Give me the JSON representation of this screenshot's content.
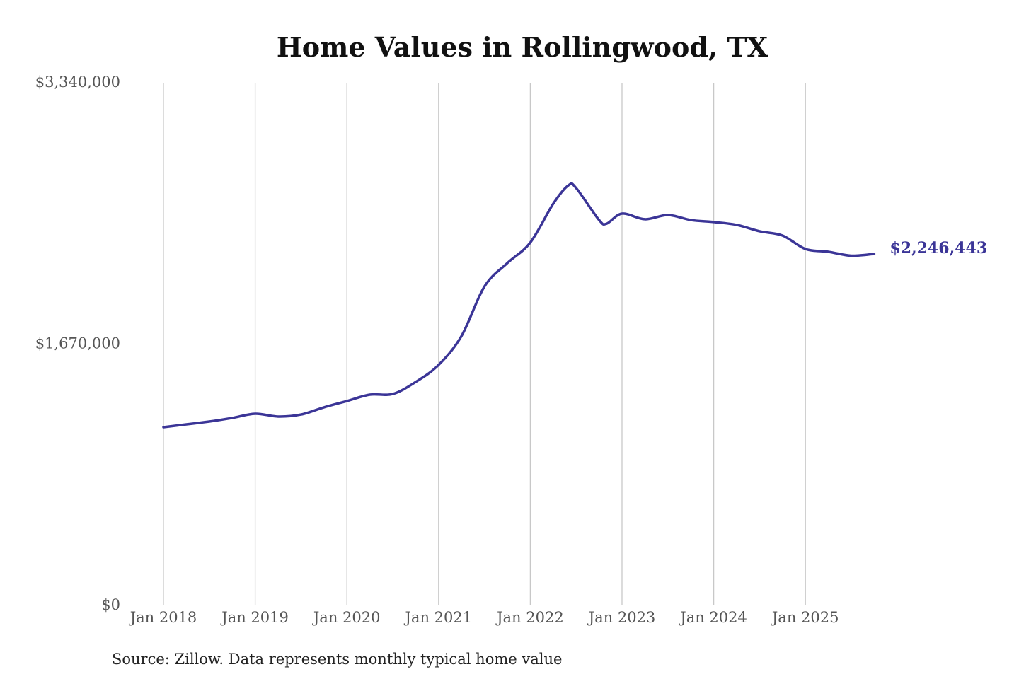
{
  "chart_data": {
    "type": "line",
    "title": "Home Values in Rollingwood, TX",
    "source": "Source: Zillow. Data represents monthly typical home value",
    "ylim": [
      0,
      3340000
    ],
    "y_ticks": [
      "$0",
      "$1,670,000",
      "$3,340,000"
    ],
    "y_tick_values": [
      0,
      1670000,
      3340000
    ],
    "x_ticks": [
      "Jan 2018",
      "Jan 2019",
      "Jan 2020",
      "Jan 2021",
      "Jan 2022",
      "Jan 2023",
      "Jan 2024",
      "Jan 2025"
    ],
    "grid": "vertical",
    "line_color": "#3b3597",
    "end_label": "$2,246,443",
    "series": [
      {
        "x": [
          "2018-01",
          "2018-04",
          "2018-07",
          "2018-10",
          "2019-01",
          "2019-04",
          "2019-07",
          "2019-10",
          "2020-01",
          "2020-04",
          "2020-07",
          "2020-10",
          "2021-01",
          "2021-04",
          "2021-07",
          "2021-10",
          "2022-01",
          "2022-04",
          "2022-06",
          "2022-07",
          "2022-10",
          "2022-11",
          "2023-01",
          "2023-04",
          "2023-07",
          "2023-10",
          "2024-01",
          "2024-04",
          "2024-07",
          "2024-10",
          "2025-01",
          "2025-04",
          "2025-07",
          "2025-10"
        ],
        "values": [
          1139000,
          1157000,
          1175000,
          1198000,
          1225000,
          1207000,
          1220000,
          1266000,
          1306000,
          1347000,
          1351000,
          1428000,
          1537000,
          1722000,
          2038000,
          2188000,
          2319000,
          2567000,
          2685000,
          2667000,
          2463000,
          2440000,
          2504000,
          2468000,
          2495000,
          2463000,
          2450000,
          2432000,
          2391000,
          2364000,
          2278000,
          2260000,
          2235000,
          2246443
        ]
      }
    ]
  }
}
